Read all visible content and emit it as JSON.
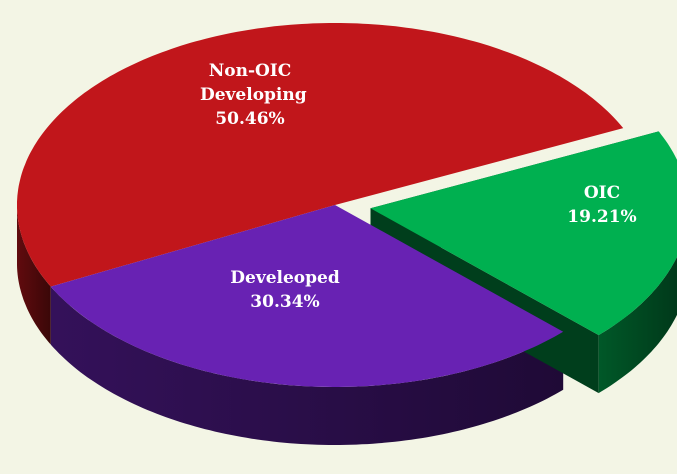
{
  "chart_data": {
    "type": "pie3d",
    "categories": [
      "Non-OIC Developing",
      "Develeoped",
      "OIC"
    ],
    "values": [
      50.46,
      30.34,
      19.21
    ],
    "value_labels": [
      "50.46%",
      "30.34%",
      "19.21%"
    ],
    "colors": [
      "#c1161b",
      "#6822b3",
      "#00b050"
    ],
    "exploded": "OIC"
  }
}
